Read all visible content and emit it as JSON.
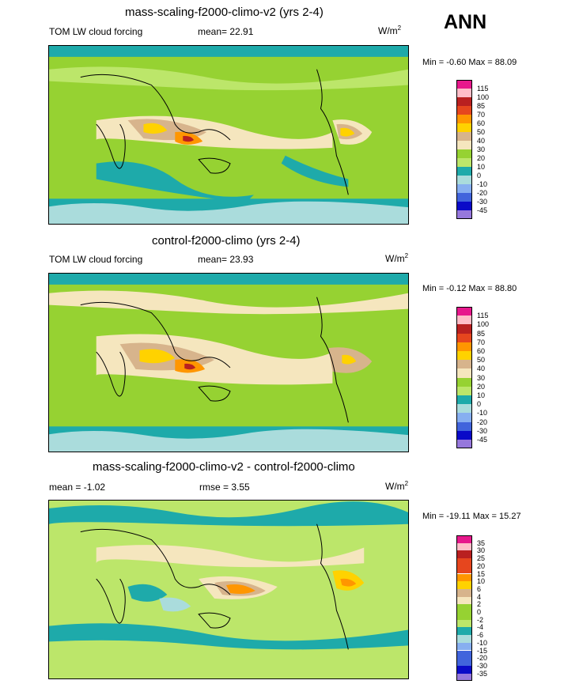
{
  "annual_label": "ANN",
  "palettes": {
    "abs": [
      "#e7188c",
      "#ffbec8",
      "#b92020",
      "#e6461e",
      "#ff9600",
      "#ffd200",
      "#d7b48c",
      "#f5e6be",
      "#96d232",
      "#bce66a",
      "#1eaaaa",
      "#aadcdc",
      "#87aff0",
      "#4164dc",
      "#0a0ac8",
      "#9678dc"
    ],
    "diff": [
      "#e7188c",
      "#ffbec8",
      "#b92020",
      "#e6461e",
      "#ff9600",
      "#ffd200",
      "#d7b48c",
      "#f5e6be",
      "#96d232",
      "#bce66a",
      "#1eaaaa",
      "#aadcdc",
      "#87aff0",
      "#4164dc",
      "#0a0ac8",
      "#9678dc"
    ]
  },
  "chart_data": [
    {
      "type": "heatmap",
      "title": "mass-scaling-f2000-climo-v2 (yrs 2-4)",
      "variable": "TOM LW cloud forcing",
      "mean_label": "mean=",
      "mean": "22.91",
      "units_base": "W/m",
      "units_exp": "2",
      "min_label": "Min =",
      "min": "-0.60",
      "max_label": "Max =",
      "max": "88.09",
      "colorbar_ticks": [
        "115",
        "100",
        "85",
        "70",
        "60",
        "50",
        "40",
        "30",
        "20",
        "10",
        "0",
        "-10",
        "-20",
        "-30",
        "-45"
      ]
    },
    {
      "type": "heatmap",
      "title": "control-f2000-climo (yrs 2-4)",
      "variable": "TOM LW cloud forcing",
      "mean_label": "mean=",
      "mean": "23.93",
      "units_base": "W/m",
      "units_exp": "2",
      "min_label": "Min =",
      "min": "-0.12",
      "max_label": "Max =",
      "max": "88.80",
      "colorbar_ticks": [
        "115",
        "100",
        "85",
        "70",
        "60",
        "50",
        "40",
        "30",
        "20",
        "10",
        "0",
        "-10",
        "-20",
        "-30",
        "-45"
      ]
    },
    {
      "type": "heatmap",
      "title": "mass-scaling-f2000-climo-v2 - control-f2000-climo",
      "mean_label": "mean =",
      "mean": "-1.02",
      "rmse_label": "rmse =",
      "rmse": "3.55",
      "units": "W/m",
      "units_exp": "2",
      "min_label": "Min =",
      "min": "-19.11",
      "max_label": "Max =",
      "max": "15.27",
      "colorbar_ticks": [
        "35",
        "30",
        "25",
        "20",
        "15",
        "10",
        "6",
        "4",
        "2",
        "0",
        "-2",
        "-4",
        "-6",
        "-10",
        "-15",
        "-20",
        "-30",
        "-35"
      ]
    }
  ]
}
